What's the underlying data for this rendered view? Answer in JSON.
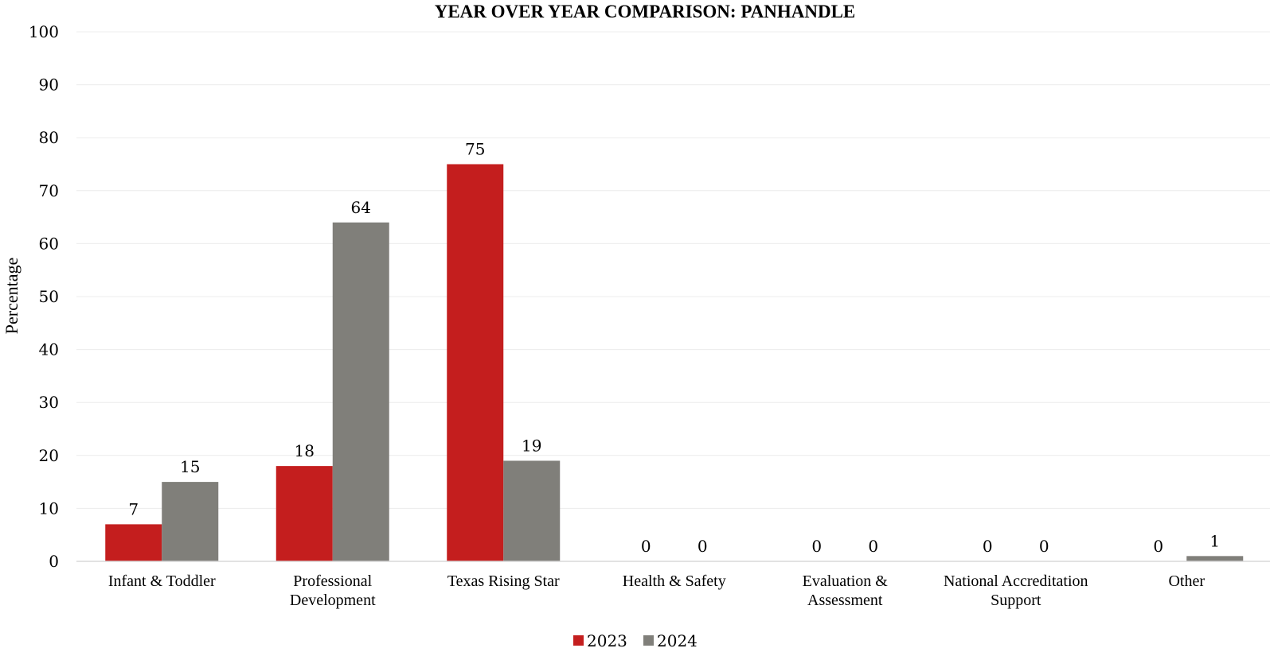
{
  "chart_data": {
    "type": "bar",
    "title": "YEAR OVER YEAR COMPARISON: PANHANDLE",
    "xlabel": "",
    "ylabel": "Percentage",
    "ylim": [
      0,
      100
    ],
    "yticks": [
      0,
      10,
      20,
      30,
      40,
      50,
      60,
      70,
      80,
      90,
      100
    ],
    "grid": true,
    "legend_position": "bottom",
    "categories": [
      [
        "Infant & Toddler"
      ],
      [
        "Professional",
        "Development"
      ],
      [
        "Texas Rising Star"
      ],
      [
        "Health & Safety"
      ],
      [
        "Evaluation &",
        "Assessment"
      ],
      [
        "National Accreditation",
        "Support"
      ],
      [
        "Other"
      ]
    ],
    "series": [
      {
        "name": "2023",
        "color": "#c41e1e",
        "values": [
          7,
          18,
          75,
          0,
          0,
          0,
          0
        ]
      },
      {
        "name": "2024",
        "color": "#807f7a",
        "values": [
          15,
          64,
          19,
          0,
          0,
          0,
          1
        ]
      }
    ]
  }
}
